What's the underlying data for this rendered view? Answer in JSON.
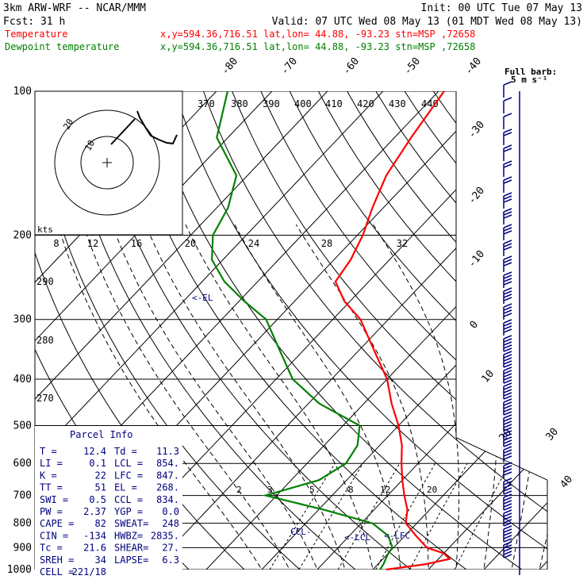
{
  "header": {
    "model": "3km ARW-WRF -- NCAR/MMM",
    "init": "Init: 00 UTC Tue 07 May 13",
    "fcst": "Fcst:   31 h",
    "valid": "Valid: 07 UTC Wed 08 May 13 (01 MDT Wed 08 May 13)"
  },
  "legend": [
    {
      "name": "Temperature",
      "loc": "x,y=594.36,716.51   lat,lon= 44.88, -93.23  stn=MSP ,72658",
      "color": "#ff0000"
    },
    {
      "name": "Dewpoint temperature",
      "loc": "x,y=594.36,716.51   lat,lon= 44.88, -93.23  stn=MSP ,72658",
      "color": "#008000"
    }
  ],
  "barb_key": {
    "line1": "Full barb:",
    "line2": "5 m s⁻¹"
  },
  "hodograph": {
    "speed_unit": "kts",
    "ring_labels": [
      "10",
      "20"
    ],
    "speed_axis": [
      "8",
      "12",
      "16",
      "20",
      "24",
      "28",
      "32"
    ]
  },
  "parcel_info": {
    "title": "Parcel Info",
    "rows": [
      {
        "a": "T   =",
        "av": "12.4",
        "b": "Td =",
        "bv": "11.3"
      },
      {
        "a": "LI  =",
        "av": "0.1",
        "b": "LCL =",
        "bv": "854."
      },
      {
        "a": "K   =",
        "av": "22",
        "b": "LFC =",
        "bv": "847."
      },
      {
        "a": "TT  =",
        "av": "51",
        "b": "EL  =",
        "bv": "268."
      },
      {
        "a": "SWI =",
        "av": "0.5",
        "b": "CCL =",
        "bv": "834."
      },
      {
        "a": "PW  =",
        "av": "2.37",
        "b": "YGP =",
        "bv": "0.0"
      },
      {
        "a": "CAPE =",
        "av": "82",
        "b": "SWEAT=",
        "bv": "248"
      },
      {
        "a": "CIN  =",
        "av": "-134",
        "b": "HWBZ=",
        "bv": "2835."
      },
      {
        "a": "Tc   =",
        "av": "21.6",
        "b": "SHEAR=",
        "bv": "27."
      },
      {
        "a": "SREH =",
        "av": "34",
        "b": "LAPSE=",
        "bv": "6.3"
      },
      {
        "a": "CELL =",
        "av": "221/18",
        "b": "",
        "bv": ""
      }
    ]
  },
  "levels": {
    "EL": "<-EL",
    "LCL": "<-LCL",
    "LFC": "<-LFC",
    "CCL": "CCL-"
  },
  "chart_data": {
    "type": "line",
    "title": "3km ARW-WRF -- NCAR/MMM",
    "xlabel": "",
    "ylabel": "",
    "pressure_ticks": [
      100,
      200,
      300,
      400,
      500,
      600,
      700,
      800,
      900,
      1000
    ],
    "isotherm_labels": [
      "-80",
      "-70",
      "-60",
      "-50",
      "-40",
      "-30",
      "-20",
      "-10",
      "0",
      "10",
      "20",
      "30",
      "40"
    ],
    "theta_labels": [
      "370",
      "380",
      "390",
      "400",
      "410",
      "420",
      "430",
      "440",
      "290",
      "280",
      "270"
    ],
    "mixing_ratio_labels": [
      "2",
      "3",
      "5",
      "8",
      "12",
      "20"
    ],
    "series": [
      {
        "name": "Temperature",
        "color": "#ff0000",
        "points": [
          [
            1000,
            12.4
          ],
          [
            975,
            18.5
          ],
          [
            950,
            22
          ],
          [
            925,
            20
          ],
          [
            900,
            16
          ],
          [
            850,
            12
          ],
          [
            800,
            8
          ],
          [
            750,
            6
          ],
          [
            700,
            3
          ],
          [
            650,
            0
          ],
          [
            600,
            -3
          ],
          [
            550,
            -6
          ],
          [
            500,
            -10
          ],
          [
            450,
            -15
          ],
          [
            400,
            -20
          ],
          [
            350,
            -27
          ],
          [
            300,
            -35
          ],
          [
            275,
            -41
          ],
          [
            250,
            -46
          ],
          [
            225,
            -47
          ],
          [
            200,
            -49
          ],
          [
            175,
            -52
          ],
          [
            150,
            -55
          ],
          [
            125,
            -57
          ],
          [
            100,
            -59
          ]
        ]
      },
      {
        "name": "Dewpoint temperature",
        "color": "#008000",
        "points": [
          [
            1000,
            11.3
          ],
          [
            975,
            11
          ],
          [
            950,
            10.5
          ],
          [
            925,
            10
          ],
          [
            900,
            9.8
          ],
          [
            850,
            7
          ],
          [
            800,
            2
          ],
          [
            750,
            -9
          ],
          [
            700,
            -22
          ],
          [
            650,
            -15
          ],
          [
            600,
            -13
          ],
          [
            550,
            -14
          ],
          [
            500,
            -17
          ],
          [
            450,
            -28
          ],
          [
            400,
            -37
          ],
          [
            350,
            -44
          ],
          [
            300,
            -52
          ],
          [
            275,
            -59
          ],
          [
            250,
            -66
          ],
          [
            225,
            -72
          ],
          [
            200,
            -76
          ],
          [
            175,
            -78
          ],
          [
            150,
            -82
          ],
          [
            125,
            -92
          ],
          [
            100,
            -98
          ]
        ]
      }
    ],
    "wind_barbs_kts": [
      5,
      10,
      10,
      15,
      15,
      20,
      20,
      25,
      25,
      30,
      30,
      30,
      35,
      35,
      40,
      40,
      45,
      45,
      50,
      50,
      45,
      45,
      45,
      40,
      40,
      45,
      45,
      50,
      50,
      50
    ]
  }
}
